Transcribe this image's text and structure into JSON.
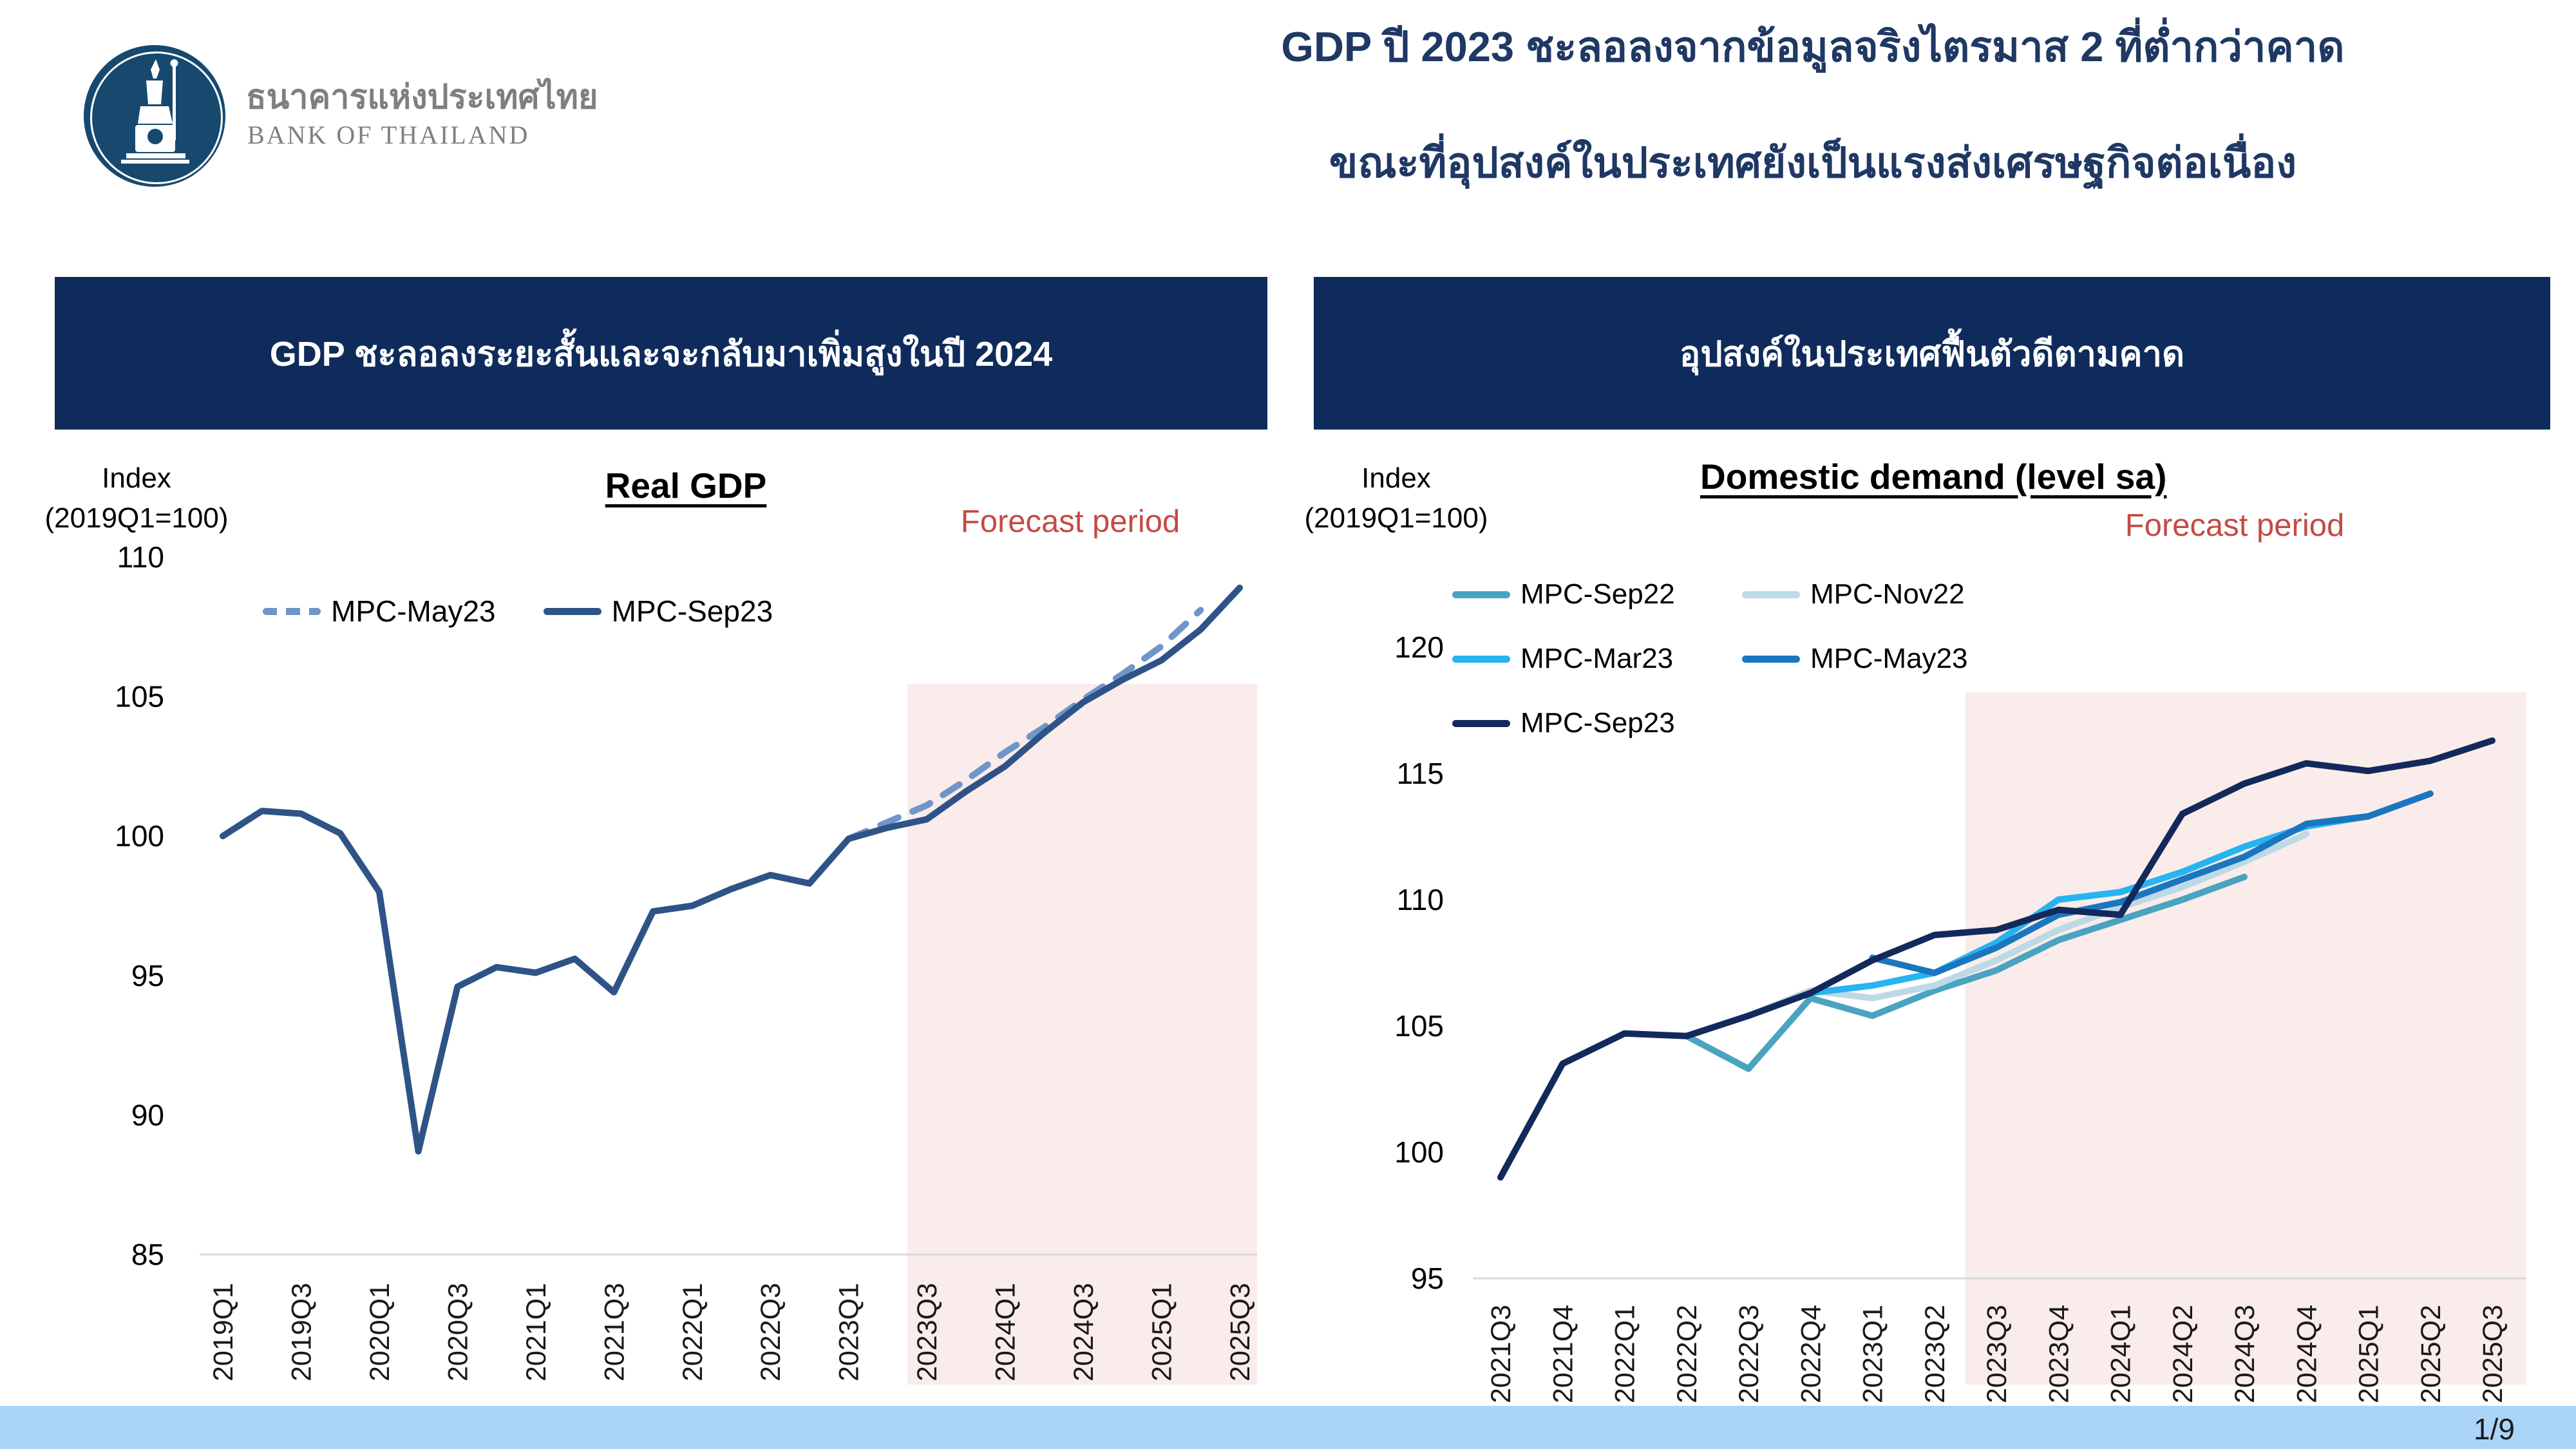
{
  "brand": {
    "name_th": "ธนาคารแห่งประเทศไทย",
    "name_en": "BANK OF THAILAND"
  },
  "title": {
    "line1": "GDP ปี 2023 ชะลอลงจากข้อมูลจริงไตรมาส 2 ที่ต่ำกว่าคาด",
    "line2": "ขณะที่อุปสงค์ในประเทศยังเป็นแรงส่งเศรษฐกิจต่อเนื่อง"
  },
  "panels": {
    "left_header": "GDP ชะลอลงระยะสั้นและจะกลับมาเพิ่มสูงในปี 2024",
    "right_header": "อุปสงค์ในประเทศฟื้นตัวดีตามคาด"
  },
  "footer": {
    "page": "1/9"
  },
  "colors": {
    "header_bar": "#0f2b5c",
    "title_text": "#1f3864",
    "forecast_text": "#c34b44",
    "forecast_shade": "#f9ecea",
    "footer_bar": "#aad4f8",
    "axis_line": "#d9d9d9",
    "logo_circle": "#17496f",
    "logo_text": "#7f7f7f"
  },
  "chart_data": [
    {
      "id": "real_gdp",
      "type": "line",
      "title": "Real GDP",
      "axis_label": "Index",
      "axis_sublabel": "(2019Q1=100)",
      "forecast_label": "Forecast period",
      "ylim": [
        85,
        110
      ],
      "yticks": [
        85,
        90,
        95,
        100,
        105,
        110
      ],
      "grid": false,
      "legend_position": "top-inside",
      "categories": [
        "2019Q1",
        "2019Q2",
        "2019Q3",
        "2019Q4",
        "2020Q1",
        "2020Q2",
        "2020Q3",
        "2020Q4",
        "2021Q1",
        "2021Q2",
        "2021Q3",
        "2021Q4",
        "2022Q1",
        "2022Q2",
        "2022Q3",
        "2022Q4",
        "2023Q1",
        "2023Q2",
        "2023Q3",
        "2023Q4",
        "2024Q1",
        "2024Q2",
        "2024Q3",
        "2024Q4",
        "2025Q1",
        "2025Q2",
        "2025Q3"
      ],
      "xtick_every": 2,
      "forecast_start": "2023Q3",
      "series": [
        {
          "name": "MPC-May23",
          "color": "#6f95c9",
          "dash": true,
          "x_start": "2023Q1",
          "values": [
            99.9,
            100.5,
            101.1,
            102.0,
            103.0,
            103.9,
            104.9,
            105.8,
            106.8,
            108.1
          ]
        },
        {
          "name": "MPC-Sep23",
          "color": "#2e5387",
          "dash": false,
          "x_start": "2019Q1",
          "values": [
            100.0,
            100.9,
            100.8,
            100.1,
            98.0,
            88.7,
            94.6,
            95.3,
            95.1,
            95.6,
            94.4,
            97.3,
            97.5,
            98.1,
            98.6,
            98.3,
            99.9,
            100.3,
            100.6,
            101.6,
            102.5,
            103.7,
            104.8,
            105.6,
            106.3,
            107.4,
            108.9
          ]
        }
      ]
    },
    {
      "id": "domestic_demand",
      "type": "line",
      "title": "Domestic demand (level sa)",
      "axis_label": "Index",
      "axis_sublabel": "(2019Q1=100)",
      "forecast_label": "Forecast period",
      "ylim": [
        95,
        120
      ],
      "yticks": [
        95,
        100,
        105,
        110,
        115,
        120
      ],
      "grid": false,
      "legend_position": "top-inside",
      "categories": [
        "2021Q3",
        "2021Q4",
        "2022Q1",
        "2022Q2",
        "2022Q3",
        "2022Q4",
        "2023Q1",
        "2023Q2",
        "2023Q3",
        "2023Q4",
        "2024Q1",
        "2024Q2",
        "2024Q3",
        "2024Q4",
        "2025Q1",
        "2025Q2",
        "2025Q3"
      ],
      "xtick_every": 1,
      "forecast_start": "2023Q3",
      "series": [
        {
          "name": "MPC-Sep22",
          "color": "#4aa3c0",
          "dash": false,
          "x_start": "2022Q2",
          "values": [
            104.6,
            103.3,
            106.1,
            105.4,
            106.4,
            107.2,
            108.4,
            109.2,
            110.0,
            110.9
          ]
        },
        {
          "name": "MPC-Nov22",
          "color": "#bdd9e6",
          "dash": false,
          "x_start": "2022Q3",
          "values": [
            105.4,
            106.4,
            106.1,
            106.6,
            107.6,
            108.8,
            109.7,
            110.5,
            111.5,
            112.6
          ]
        },
        {
          "name": "MPC-Mar23",
          "color": "#27b4f0",
          "dash": false,
          "x_start": "2022Q4",
          "values": [
            106.3,
            106.6,
            107.1,
            108.3,
            110.0,
            110.3,
            111.1,
            112.1,
            112.9,
            113.3
          ]
        },
        {
          "name": "MPC-May23",
          "color": "#1b76c0",
          "dash": false,
          "x_start": "2023Q1",
          "values": [
            107.7,
            107.1,
            108.1,
            109.4,
            109.9,
            110.8,
            111.7,
            113.0,
            113.3,
            114.2
          ]
        },
        {
          "name": "MPC-Sep23",
          "color": "#13295c",
          "dash": false,
          "x_start": "2021Q3",
          "values": [
            99.0,
            103.5,
            104.7,
            104.6,
            105.4,
            106.3,
            107.6,
            108.6,
            108.8,
            109.6,
            109.4,
            113.4,
            114.6,
            115.4,
            115.1,
            115.5,
            116.3
          ]
        }
      ]
    }
  ]
}
